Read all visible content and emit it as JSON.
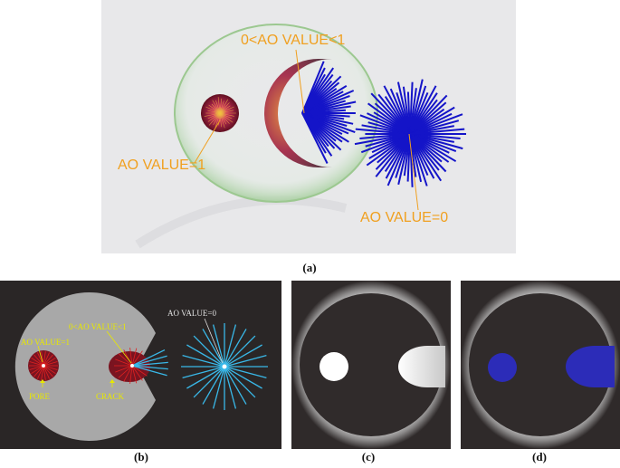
{
  "panel_a": {
    "label_mid": "0<AO VALUE<1",
    "label_left": "AO VALUE=1",
    "label_right": "AO VALUE=0",
    "caption": "(a)"
  },
  "panel_b": {
    "label_ao1": "AO VALUE=1",
    "label_mid": "0<AO VALUE<1",
    "label_ao0": "AO VALUE=0",
    "label_pore": "PORE",
    "label_crack": "CRACK",
    "caption": "(b)"
  },
  "panel_c": {
    "caption": "(c)"
  },
  "panel_d": {
    "caption": "(d)"
  },
  "colors": {
    "orange": "#f0a020",
    "yellow": "#e8e800",
    "blue_ray": "#1414c8",
    "cyan_ray": "#39b8e8",
    "red_pore": "#8a1020",
    "dark_bg": "#2a2626",
    "gray_disc": "#a8a8a8"
  }
}
